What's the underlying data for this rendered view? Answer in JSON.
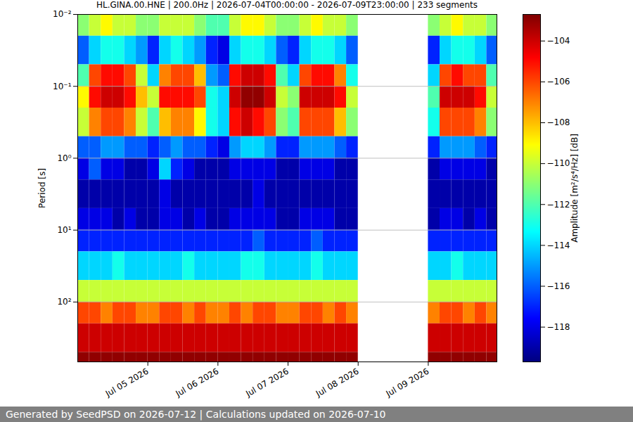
{
  "chart_data": {
    "type": "heatmap",
    "title": "HL.GINA.00.HNE | 200.0Hz | 2026-07-04T00:00:00 - 2026-07-09T23:00:00 | 233 segments",
    "caption": "Generated by SeedPSD on 2026-07-12 | Calculations updated on 2026-07-10",
    "y_label": "Period [s]",
    "x": [
      "2026-07-04T00:00:00",
      "2026-07-04T04:00:00",
      "2026-07-04T08:00:00",
      "2026-07-04T12:00:00",
      "2026-07-04T16:00:00",
      "2026-07-04T20:00:00",
      "2026-07-05T00:00:00",
      "2026-07-05T04:00:00",
      "2026-07-05T08:00:00",
      "2026-07-05T12:00:00",
      "2026-07-05T16:00:00",
      "2026-07-05T20:00:00",
      "2026-07-06T00:00:00",
      "2026-07-06T04:00:00",
      "2026-07-06T08:00:00",
      "2026-07-06T12:00:00",
      "2026-07-06T16:00:00",
      "2026-07-06T20:00:00",
      "2026-07-07T00:00:00",
      "2026-07-07T04:00:00",
      "2026-07-07T08:00:00",
      "2026-07-07T12:00:00",
      "2026-07-07T16:00:00",
      "2026-07-07T20:00:00",
      "2026-07-08T00:00:00",
      "2026-07-08T04:00:00",
      "2026-07-08T08:00:00",
      "2026-07-08T12:00:00",
      "2026-07-08T16:00:00",
      "2026-07-08T20:00:00",
      "2026-07-09T00:00:00",
      "2026-07-09T04:00:00",
      "2026-07-09T08:00:00",
      "2026-07-09T12:00:00",
      "2026-07-09T16:00:00",
      "2026-07-09T20:00:00"
    ],
    "period_bins": [
      0.01,
      0.02,
      0.05,
      0.1,
      0.2,
      0.5,
      1,
      2,
      5,
      10,
      20,
      50,
      100,
      200,
      500,
      680
    ],
    "values": [
      [
        -111,
        -116,
        -112,
        -109,
        -110,
        -116,
        -118,
        -119,
        -118,
        -117,
        -114,
        -110,
        -106,
        -104,
        -103
      ],
      [
        -110,
        -114,
        -106,
        -105,
        -107,
        -116,
        -116,
        -119,
        -118,
        -117,
        -114,
        -110,
        -106,
        -104,
        -103
      ],
      [
        -109,
        -113,
        -105,
        -104,
        -106,
        -115,
        -118,
        -119,
        -118,
        -117,
        -114,
        -110,
        -107,
        -104,
        -103
      ],
      [
        -110,
        -113,
        -105,
        -104,
        -106,
        -115,
        -118,
        -119,
        -119,
        -117,
        -113,
        -110,
        -106,
        -104,
        -103
      ],
      [
        -110,
        -114,
        -106,
        -105,
        -107,
        -116,
        -119,
        -119,
        -118,
        -117,
        -114,
        -110,
        -106,
        -104,
        -103
      ],
      [
        -111,
        -115,
        -110,
        -108,
        -110,
        -116,
        -119,
        -119,
        -119,
        -117,
        -114,
        -110,
        -107,
        -104,
        -103
      ],
      [
        -111,
        -117,
        -114,
        -110,
        -112,
        -117,
        -118,
        -119,
        -119,
        -117,
        -114,
        -110,
        -107,
        -104,
        -103
      ],
      [
        -110,
        -114,
        -107,
        -105,
        -108,
        -116,
        -114,
        -118,
        -118,
        -117,
        -114,
        -110,
        -106,
        -104,
        -103
      ],
      [
        -110,
        -113,
        -106,
        -105,
        -107,
        -115,
        -117,
        -119,
        -118,
        -117,
        -114,
        -110,
        -106,
        -104,
        -103
      ],
      [
        -110,
        -114,
        -106,
        -105,
        -107,
        -116,
        -118,
        -119,
        -119,
        -117,
        -113,
        -110,
        -107,
        -104,
        -103
      ],
      [
        -111,
        -115,
        -108,
        -106,
        -109,
        -116,
        -119,
        -119,
        -118,
        -117,
        -114,
        -110,
        -106,
        -104,
        -103
      ],
      [
        -112,
        -117,
        -115,
        -113,
        -113,
        -117,
        -119,
        -119,
        -119,
        -117,
        -114,
        -110,
        -107,
        -104,
        -103
      ],
      [
        -112,
        -118,
        -116,
        -114,
        -114,
        -118,
        -119,
        -119,
        -119,
        -117,
        -114,
        -110,
        -107,
        -104,
        -103
      ],
      [
        -110,
        -114,
        -105,
        -104,
        -105,
        -115,
        -118,
        -119,
        -118,
        -117,
        -114,
        -110,
        -106,
        -104,
        -103
      ],
      [
        -109,
        -113,
        -104,
        -103,
        -104,
        -114,
        -118,
        -119,
        -118,
        -117,
        -113,
        -110,
        -107,
        -104,
        -103
      ],
      [
        -109,
        -113,
        -104,
        -103,
        -105,
        -114,
        -118,
        -118,
        -118,
        -116,
        -113,
        -110,
        -106,
        -104,
        -103
      ],
      [
        -110,
        -114,
        -105,
        -104,
        -106,
        -115,
        -118,
        -119,
        -118,
        -117,
        -114,
        -110,
        -106,
        -104,
        -103
      ],
      [
        -111,
        -116,
        -112,
        -110,
        -111,
        -117,
        -119,
        -119,
        -119,
        -117,
        -114,
        -110,
        -107,
        -104,
        -103
      ],
      [
        -111,
        -117,
        -114,
        -111,
        -112,
        -117,
        -119,
        -119,
        -119,
        -117,
        -114,
        -110,
        -107,
        -104,
        -103
      ],
      [
        -110,
        -114,
        -106,
        -104,
        -106,
        -115,
        -118,
        -119,
        -118,
        -117,
        -114,
        -110,
        -106,
        -104,
        -103
      ],
      [
        -109,
        -113,
        -105,
        -104,
        -106,
        -115,
        -118,
        -119,
        -118,
        -116,
        -113,
        -110,
        -106,
        -104,
        -103
      ],
      [
        -110,
        -113,
        -105,
        -104,
        -106,
        -115,
        -118,
        -119,
        -118,
        -117,
        -114,
        -110,
        -107,
        -104,
        -103
      ],
      [
        -110,
        -114,
        -107,
        -105,
        -108,
        -116,
        -119,
        -119,
        -119,
        -117,
        -114,
        -110,
        -106,
        -104,
        -103
      ],
      [
        -111,
        -116,
        -113,
        -110,
        -111,
        -117,
        -119,
        -119,
        -119,
        -117,
        -114,
        -110,
        -107,
        -104,
        -103
      ],
      null,
      null,
      null,
      null,
      null,
      null,
      [
        -111,
        -117,
        -114,
        -112,
        -113,
        -117,
        -119,
        -119,
        -119,
        -117,
        -114,
        -110,
        -107,
        -104,
        -103
      ],
      [
        -110,
        -114,
        -106,
        -104,
        -106,
        -115,
        -118,
        -119,
        -118,
        -117,
        -114,
        -110,
        -106,
        -104,
        -103
      ],
      [
        -109,
        -113,
        -105,
        -104,
        -106,
        -115,
        -118,
        -119,
        -118,
        -117,
        -113,
        -110,
        -106,
        -104,
        -103
      ],
      [
        -110,
        -113,
        -106,
        -104,
        -106,
        -115,
        -118,
        -119,
        -119,
        -117,
        -114,
        -110,
        -107,
        -104,
        -103
      ],
      [
        -110,
        -114,
        -106,
        -105,
        -107,
        -116,
        -118,
        -119,
        -118,
        -117,
        -114,
        -110,
        -106,
        -104,
        -103
      ],
      [
        -111,
        -116,
        -112,
        -110,
        -111,
        -117,
        -119,
        -119,
        -119,
        -117,
        -114,
        -110,
        -107,
        -104,
        -103
      ]
    ],
    "xlim": [
      "2026-07-04T00:00:00",
      "2026-07-09T23:30:00"
    ],
    "xticks": [
      {
        "value": "2026-07-05T00:00:00",
        "label": "Jul 05 2026"
      },
      {
        "value": "2026-07-06T00:00:00",
        "label": "Jul 06 2026"
      },
      {
        "value": "2026-07-07T00:00:00",
        "label": "Jul 07 2026"
      },
      {
        "value": "2026-07-08T00:00:00",
        "label": "Jul 08 2026"
      },
      {
        "value": "2026-07-09T00:00:00",
        "label": "Jul 09 2026"
      }
    ],
    "ylim": [
      0.01,
      680
    ],
    "yticks": [
      {
        "value": 0.01,
        "label": "10⁻²"
      },
      {
        "value": 0.1,
        "label": "10⁻¹"
      },
      {
        "value": 1,
        "label": "10⁰"
      },
      {
        "value": 10,
        "label": "10¹"
      },
      {
        "value": 100,
        "label": "10²"
      }
    ],
    "log": "y",
    "grid": true,
    "colorbar": {
      "label": "Amplitude [m²/s⁴/Hz] [dB]",
      "range": [
        -119.7,
        -102.7
      ],
      "ticks": [
        -118,
        -116,
        -114,
        -112,
        -110,
        -108,
        -106,
        -104
      ]
    }
  }
}
